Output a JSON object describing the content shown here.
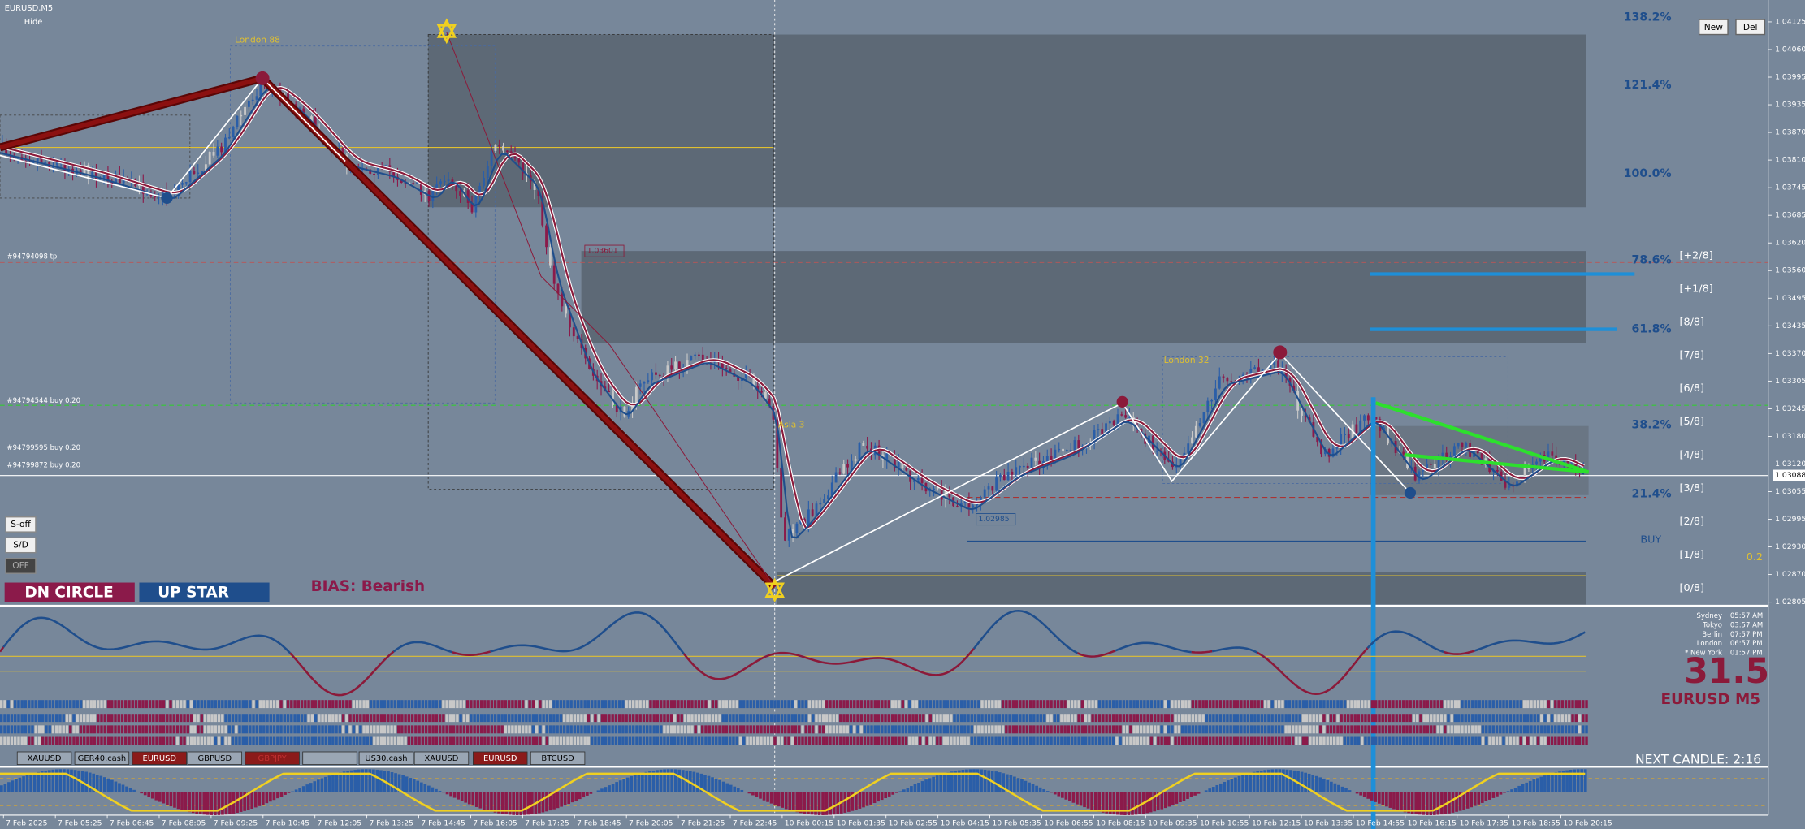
{
  "header": {
    "symbol": "EURUSD,M5",
    "hide": "Hide"
  },
  "toolbar": {
    "new": "New",
    "del": "Del"
  },
  "side_buttons": [
    "S-off",
    "S/D",
    "OFF"
  ],
  "signals": {
    "dn_circle": "DN CIRCLE",
    "up_star": "UP STAR",
    "bias": "BIAS: Bearish"
  },
  "session_labels": [
    "London 88",
    "London 32",
    "Asia 3"
  ],
  "orders": [
    "#94794098 tp",
    "#94794544 buy 0.20",
    "#94799595 buy 0.20",
    "#94799872 buy 0.20"
  ],
  "fib_levels": [
    "138.2%",
    "121.4%",
    "100.0%",
    "78.6%",
    "61.8%",
    "38.2%",
    "21.4%"
  ],
  "murrey_levels": [
    "[+2/8]",
    "[+1/8]",
    "[8/8]",
    "[7/8]",
    "[6/8]",
    "[5/8]",
    "[4/8]",
    "[3/8]",
    "[2/8]",
    "[1/8]",
    "[0/8]"
  ],
  "trade": {
    "side": "BUY",
    "lots": "0.2"
  },
  "price_tags": [
    "1.03601",
    "1.02985"
  ],
  "price_axis": {
    "ticks": [
      "1.04125",
      "1.04060",
      "1.03995",
      "1.03935",
      "1.03870",
      "1.03810",
      "1.03745",
      "1.03685",
      "1.03620",
      "1.03560",
      "1.03495",
      "1.03435",
      "1.03370",
      "1.03305",
      "1.03245",
      "1.03180",
      "1.03120",
      "1.03055",
      "1.02995",
      "1.02930",
      "1.02870",
      "1.02805"
    ],
    "current": "1.03088"
  },
  "time_axis": [
    "7 Feb 2025",
    "7 Feb 05:25",
    "7 Feb 06:45",
    "7 Feb 08:05",
    "7 Feb 09:25",
    "7 Feb 10:45",
    "7 Feb 12:05",
    "7 Feb 13:25",
    "7 Feb 14:45",
    "7 Feb 16:05",
    "7 Feb 17:25",
    "7 Feb 18:45",
    "7 Feb 20:05",
    "7 Feb 21:25",
    "7 Feb 22:45",
    "10 Feb 00:15",
    "10 Feb 01:35",
    "10 Feb 02:55",
    "10 Feb 04:15",
    "10 Feb 05:35",
    "10 Feb 06:55",
    "10 Feb 08:15",
    "10 Feb 09:35",
    "10 Feb 10:55",
    "10 Feb 12:15",
    "10 Feb 13:35",
    "10 Feb 14:55",
    "10 Feb 16:15",
    "10 Feb 17:35",
    "10 Feb 18:55",
    "10 Feb 20:15"
  ],
  "clock": [
    {
      "city": "Sydney",
      "time": "05:57 AM"
    },
    {
      "city": "Tokyo",
      "time": "03:57 AM"
    },
    {
      "city": "Berlin",
      "time": "07:57 PM"
    },
    {
      "city": "London",
      "time": "06:57 PM"
    },
    {
      "city": "* New York",
      "time": "01:57 PM"
    }
  ],
  "strength": {
    "value": "31.5",
    "symbol": "EURUSD M5"
  },
  "symbol_buttons": [
    "XAUUSD",
    "GER40.cash",
    "EURUSD",
    "GBPUSD",
    "GBPJPY",
    "US30.cash",
    "XAUUSD",
    "EURUSD",
    "BTCUSD"
  ],
  "next_candle": "NEXT CANDLE: 2:16"
}
